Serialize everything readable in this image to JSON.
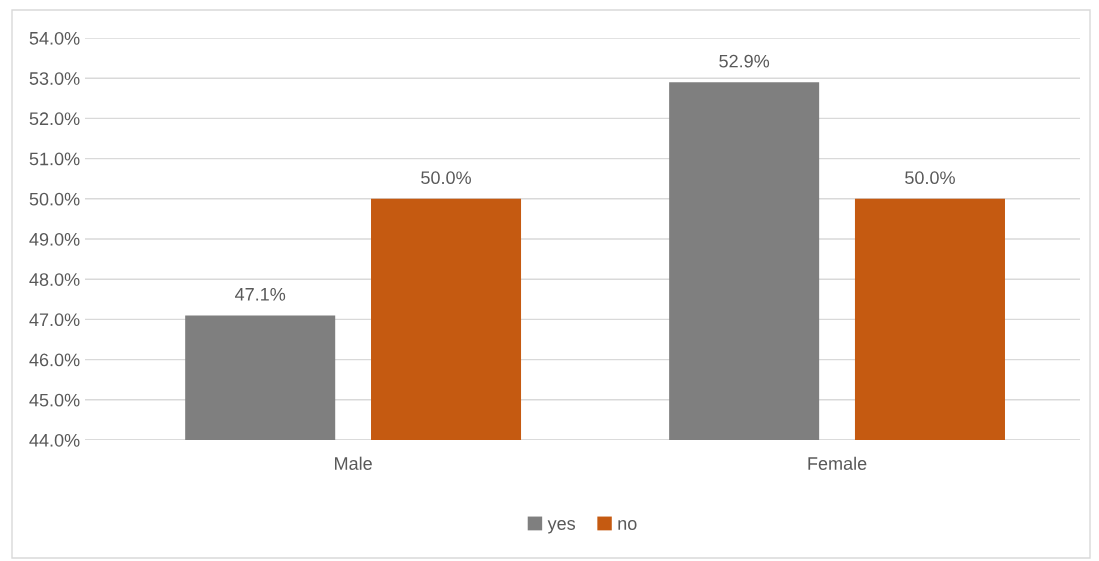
{
  "chart_data": {
    "type": "bar",
    "categories": [
      "Male",
      "Female"
    ],
    "series": [
      {
        "name": "yes",
        "color": "#7f7f7f",
        "values": [
          47.1,
          52.9
        ],
        "value_labels": [
          "47.1%",
          "52.9%"
        ]
      },
      {
        "name": "no",
        "color": "#c55a11",
        "values": [
          50.0,
          50.0
        ],
        "value_labels": [
          "50.0%",
          "50.0%"
        ]
      }
    ],
    "ylim": [
      44,
      54
    ],
    "yticks": [
      {
        "value": 44,
        "label": "44.0%"
      },
      {
        "value": 45,
        "label": "45.0%"
      },
      {
        "value": 46,
        "label": "46.0%"
      },
      {
        "value": 47,
        "label": "47.0%"
      },
      {
        "value": 48,
        "label": "48.0%"
      },
      {
        "value": 49,
        "label": "49.0%"
      },
      {
        "value": 50,
        "label": "50.0%"
      },
      {
        "value": 51,
        "label": "51.0%"
      },
      {
        "value": 52,
        "label": "52.0%"
      },
      {
        "value": 53,
        "label": "53.0%"
      },
      {
        "value": 54,
        "label": "54.0%"
      }
    ],
    "grid": "y",
    "legend": "bottom"
  }
}
